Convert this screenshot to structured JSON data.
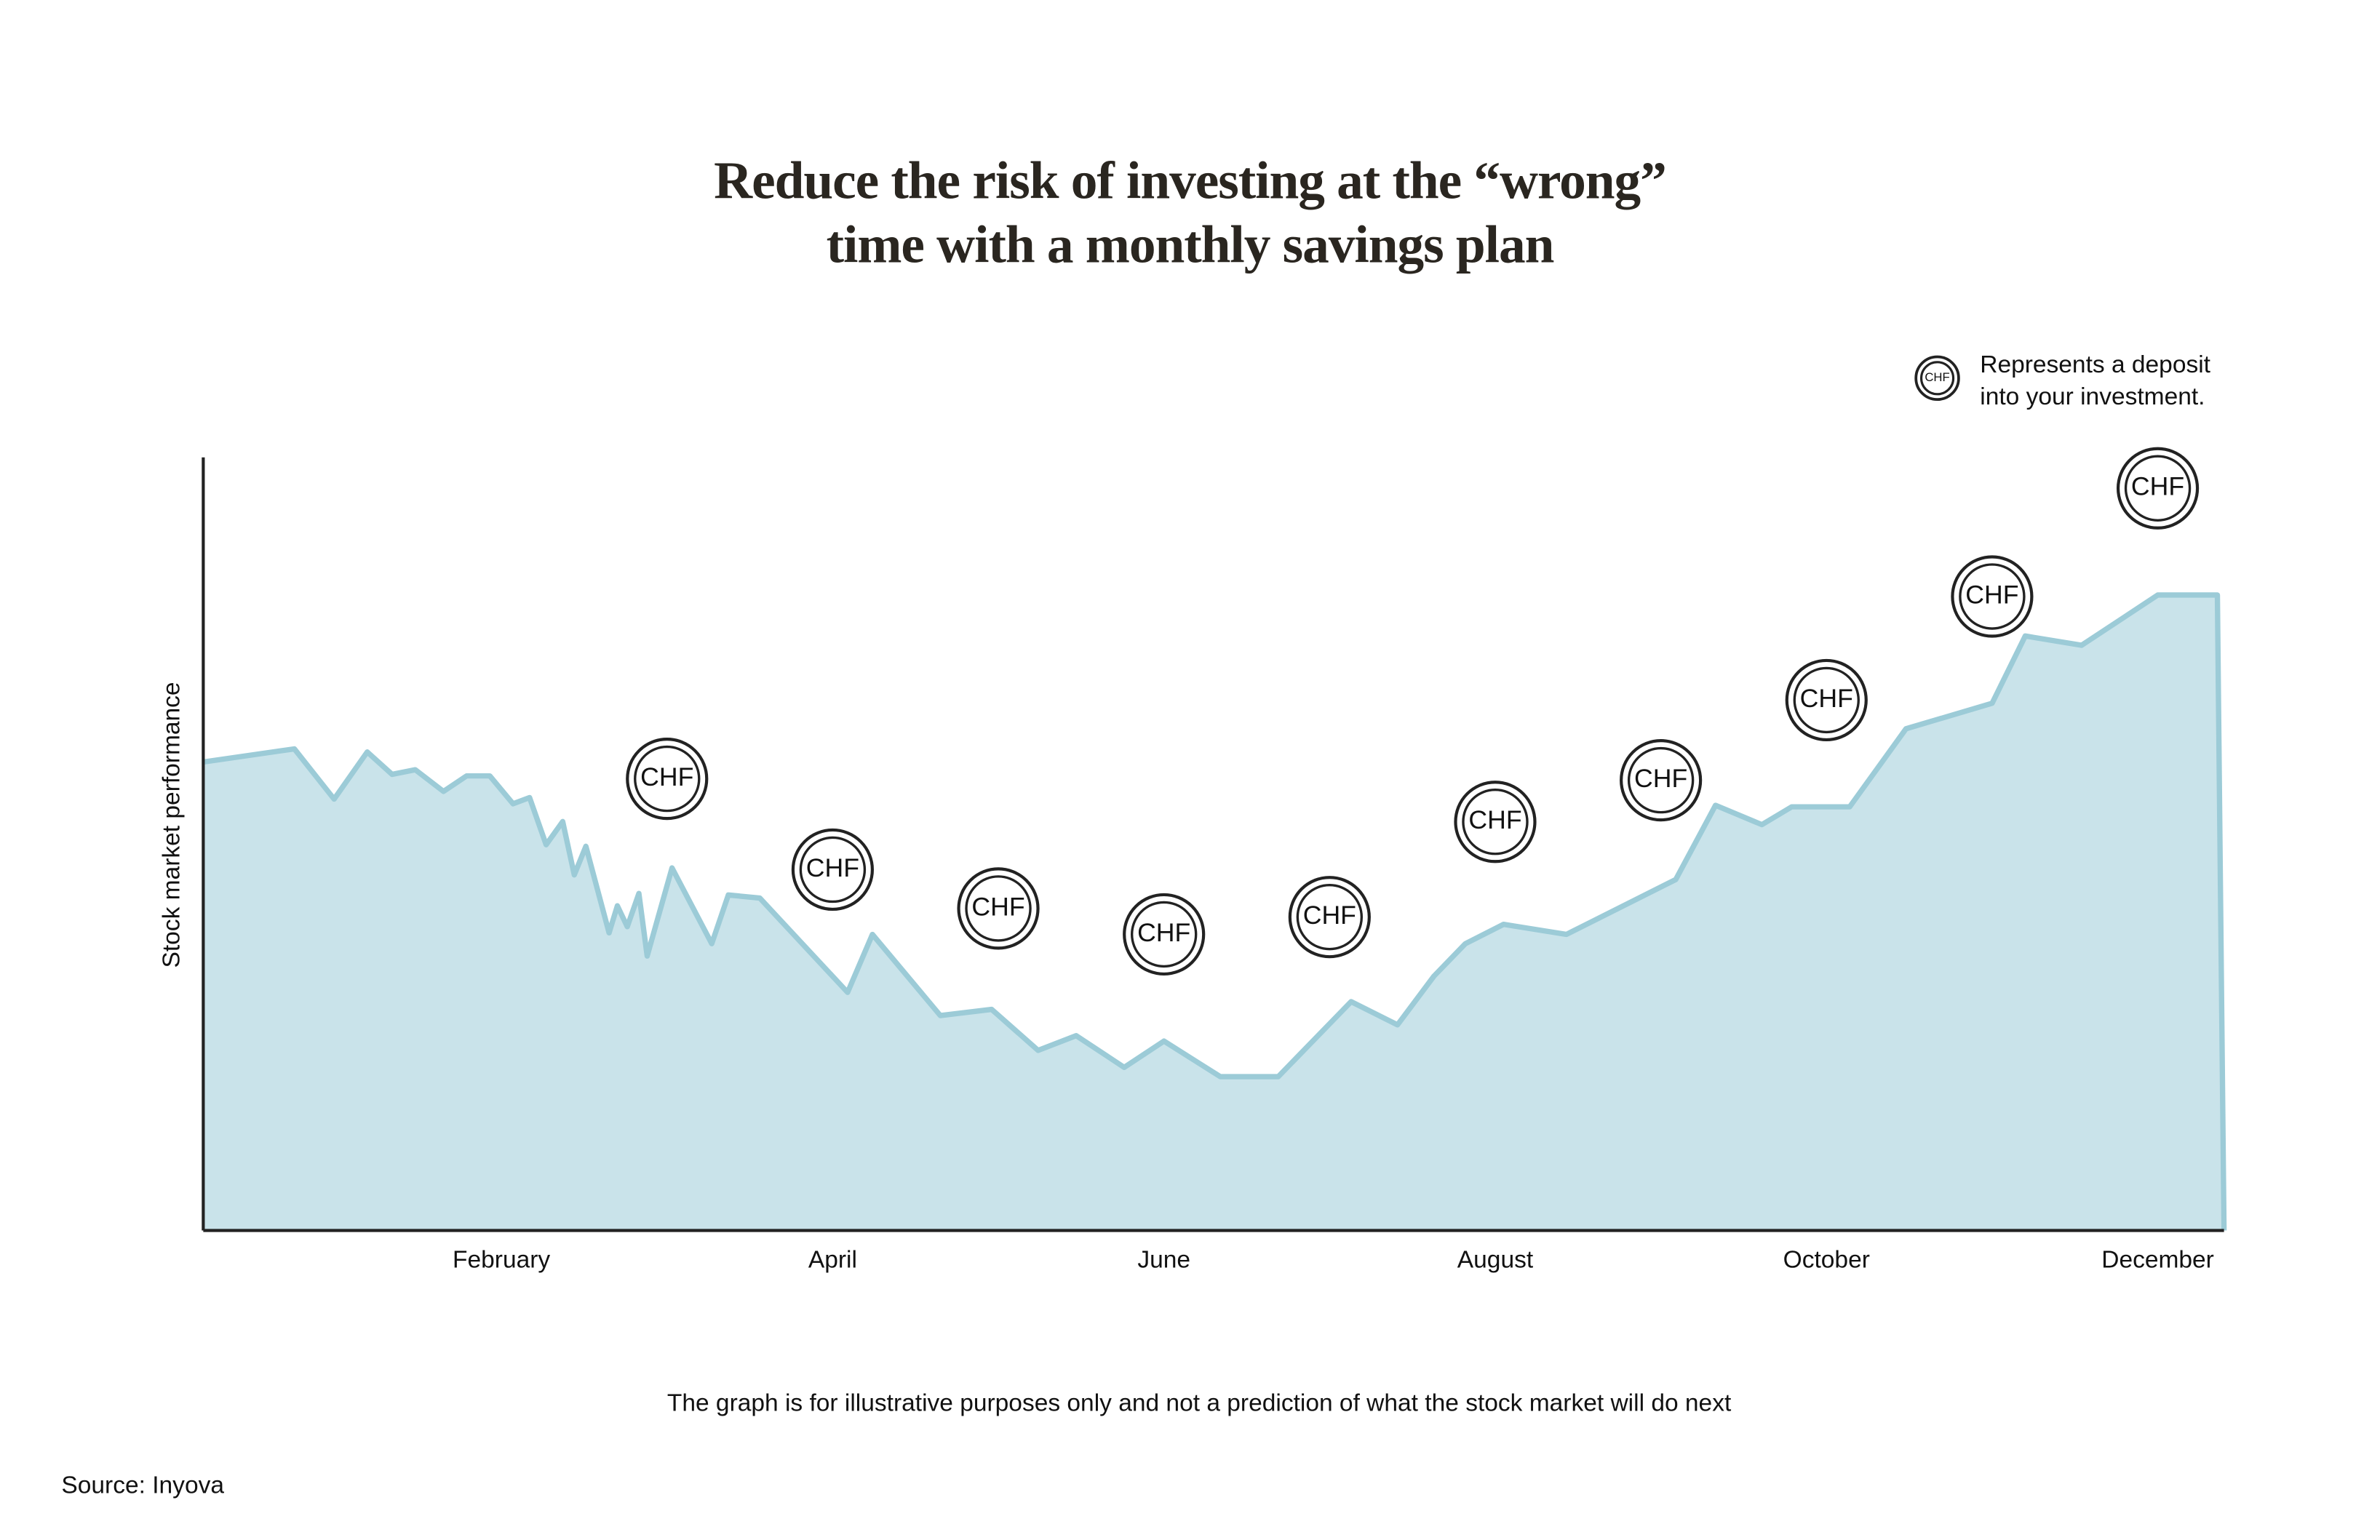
{
  "chart_data": {
    "type": "area",
    "title": [
      "Reduce the risk of investing at the “wrong”",
      "time with a monthly savings plan"
    ],
    "y_label": "Stock market performance",
    "note": "The graph is for illustrative purposes only and not a prediction of what the stock market will do next",
    "source": "Source: Inyova",
    "legend": {
      "symbol": "CHF",
      "lines": [
        "Represents a deposit",
        "into your investment."
      ]
    },
    "xlim": [
      -0.8,
      11.4
    ],
    "ylim": [
      0,
      100
    ],
    "xticks": [
      {
        "value": 1,
        "label": "February"
      },
      {
        "value": 3,
        "label": "April"
      },
      {
        "value": 5,
        "label": "June"
      },
      {
        "value": 7,
        "label": "August"
      },
      {
        "value": 9,
        "label": "October"
      },
      {
        "value": 11,
        "label": "December"
      }
    ],
    "x": [
      -0.8,
      -0.25,
      -0.01,
      0.19,
      0.34,
      0.48,
      0.65,
      0.79,
      0.93,
      1.07,
      1.17,
      1.27,
      1.37,
      1.44,
      1.51,
      1.65,
      1.7,
      1.76,
      1.83,
      1.88,
      2.03,
      2.27,
      2.37,
      2.56,
      3.09,
      3.24,
      3.65,
      3.96,
      4.24,
      4.47,
      4.76,
      5.0,
      5.34,
      5.69,
      6.13,
      6.41,
      6.63,
      6.82,
      7.05,
      7.43,
      8.09,
      8.33,
      8.61,
      8.79,
      9.14,
      9.48,
      10.0,
      10.2,
      10.54,
      11.0,
      11.36,
      11.4
    ],
    "values": [
      60.6,
      62.3,
      55.8,
      61.9,
      59.0,
      59.6,
      56.8,
      58.8,
      58.8,
      55.2,
      56.0,
      49.9,
      52.9,
      46.0,
      49.7,
      38.5,
      42.0,
      39.3,
      43.6,
      35.5,
      46.9,
      37.1,
      43.4,
      43.0,
      30.8,
      38.3,
      27.8,
      28.6,
      23.3,
      25.2,
      21.1,
      24.5,
      19.9,
      19.9,
      29.6,
      26.6,
      32.9,
      37.1,
      39.6,
      38.3,
      45.4,
      55.0,
      52.5,
      54.8,
      54.8,
      64.9,
      68.2,
      76.9,
      75.7,
      82.2,
      82.2,
      0
    ],
    "color": "#c9e3ea",
    "line_color": "#9ccbd7",
    "deposits": [
      {
        "x": 2,
        "label": "CHF"
      },
      {
        "x": 3,
        "label": "CHF"
      },
      {
        "x": 4,
        "label": "CHF"
      },
      {
        "x": 5,
        "label": "CHF"
      },
      {
        "x": 6,
        "label": "CHF"
      },
      {
        "x": 7,
        "label": "CHF"
      },
      {
        "x": 8,
        "label": "CHF"
      },
      {
        "x": 9,
        "label": "CHF"
      },
      {
        "x": 10,
        "label": "CHF"
      },
      {
        "x": 11,
        "label": "CHF"
      }
    ]
  }
}
